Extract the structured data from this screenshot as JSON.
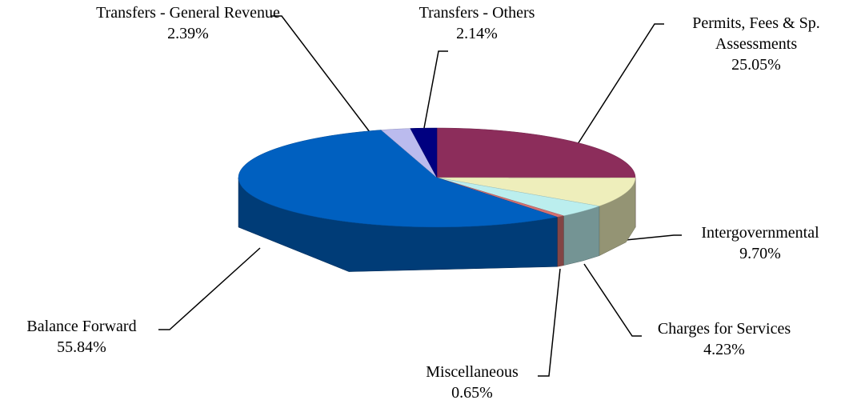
{
  "chart_data": {
    "type": "pie",
    "categories": [
      "Permits, Fees & Sp. Assessments",
      "Intergovernmental",
      "Charges for Services",
      "Miscellaneous",
      "Balance Forward",
      "Transfers - General Revenue",
      "Transfers - Others"
    ],
    "values": [
      25.05,
      9.7,
      4.23,
      0.65,
      55.84,
      2.39,
      2.14
    ],
    "value_labels": [
      "25.05%",
      "9.70%",
      "4.23%",
      "0.65%",
      "55.84%",
      "2.39%",
      "2.14%"
    ],
    "colors": [
      "#8c2d5b",
      "#eeeebb",
      "#bbeeee",
      "#d47070",
      "#0060c0",
      "#bbbbee",
      "#000080"
    ]
  }
}
